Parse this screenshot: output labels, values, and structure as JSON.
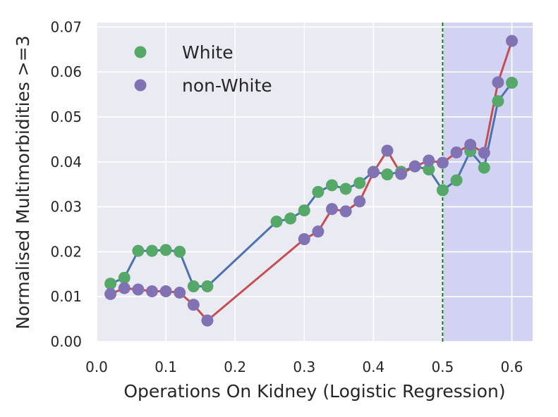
{
  "chart_data": {
    "type": "line",
    "title": "",
    "xlabel": "Operations On Kidney (Logistic Regression)",
    "ylabel": "Normalised Multimorbidities >=3",
    "xlim": [
      0.0,
      0.63
    ],
    "ylim": [
      0.0,
      0.071
    ],
    "xticks": [
      0.0,
      0.1,
      0.2,
      0.3,
      0.4,
      0.5,
      0.6
    ],
    "xtick_labels": [
      "0.0",
      "0.1",
      "0.2",
      "0.3",
      "0.4",
      "0.5",
      "0.6"
    ],
    "yticks": [
      0.0,
      0.01,
      0.02,
      0.03,
      0.04,
      0.05,
      0.06,
      0.07
    ],
    "ytick_labels": [
      "0.00",
      "0.01",
      "0.02",
      "0.03",
      "0.04",
      "0.05",
      "0.06",
      "0.07"
    ],
    "grid": true,
    "legend_position": "top-left",
    "threshold": 0.5,
    "threshold_color": "#007a00",
    "shaded_region": [
      0.5,
      0.63
    ],
    "shaded_color": "#d2d3f3",
    "background_color": "#eaeaf2",
    "series": [
      {
        "name": "White",
        "marker_color": "#55a868",
        "line_color": "#4c72b0",
        "x": [
          0.02,
          0.04,
          0.06,
          0.08,
          0.1,
          0.12,
          0.14,
          0.16,
          0.26,
          0.28,
          0.3,
          0.32,
          0.34,
          0.36,
          0.38,
          0.4,
          0.42,
          0.44,
          0.46,
          0.48,
          0.5,
          0.52,
          0.54,
          0.56,
          0.58,
          0.6
        ],
        "y": [
          0.0129,
          0.0142,
          0.0202,
          0.0202,
          0.0204,
          0.02,
          0.0123,
          0.0123,
          0.0267,
          0.0274,
          0.0292,
          0.0333,
          0.0348,
          0.034,
          0.0353,
          0.0378,
          0.0372,
          0.0378,
          0.039,
          0.0383,
          0.0337,
          0.0359,
          0.0424,
          0.0387,
          0.0535,
          0.0576
        ]
      },
      {
        "name": "non-White",
        "marker_color": "#8172b3",
        "line_color": "#c44e52",
        "x": [
          0.02,
          0.04,
          0.06,
          0.08,
          0.1,
          0.12,
          0.14,
          0.16,
          0.3,
          0.32,
          0.34,
          0.36,
          0.38,
          0.4,
          0.42,
          0.44,
          0.46,
          0.48,
          0.5,
          0.52,
          0.54,
          0.56,
          0.58,
          0.6
        ],
        "y": [
          0.0106,
          0.0119,
          0.0116,
          0.0112,
          0.0112,
          0.0109,
          0.0082,
          0.0047,
          0.0228,
          0.0245,
          0.0295,
          0.029,
          0.0312,
          0.0377,
          0.0425,
          0.0373,
          0.039,
          0.0403,
          0.0398,
          0.0421,
          0.0438,
          0.042,
          0.0577,
          0.0669
        ]
      }
    ]
  }
}
